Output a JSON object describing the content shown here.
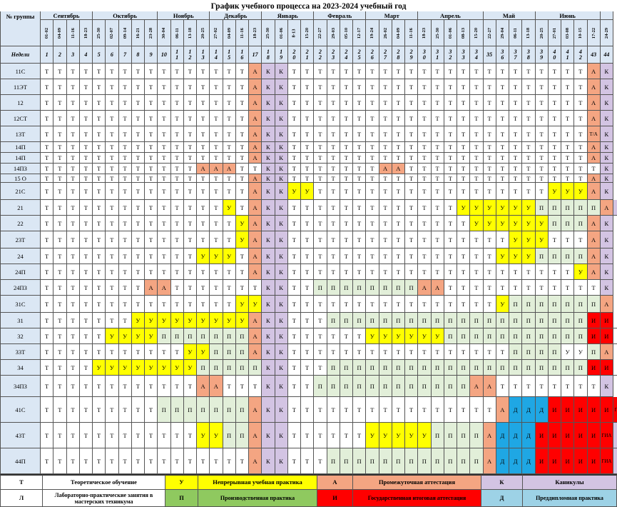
{
  "title": "График учебного процесса   на 2023-2024 учебный год",
  "header": {
    "group_label": "№ группы",
    "weeks_label": "Недели"
  },
  "months": [
    {
      "name": "Сентябрь",
      "span": 4
    },
    {
      "name": "Октябрь",
      "span": 5
    },
    {
      "name": "Ноябрь",
      "span": 4
    },
    {
      "name": "Декабрь",
      "span": 4
    },
    {
      "name": "Январь",
      "span": 4
    },
    {
      "name": "Февраль",
      "span": 4
    },
    {
      "name": "Март",
      "span": 4
    },
    {
      "name": "Апрель",
      "span": 5
    },
    {
      "name": "Май",
      "span": 4
    },
    {
      "name": "Июнь",
      "span": 5
    },
    {
      "name": "",
      "span": 1
    }
  ],
  "week_dates": [
    "01-02",
    "04-09",
    "11-16",
    "18-23",
    "25-30",
    "02-07",
    "09-14",
    "16-21",
    "23-28",
    "30-04",
    "06-11",
    "13-18",
    "20-25",
    "27-02",
    "04-09",
    "11-16",
    "18-23",
    "25-30",
    "01-06",
    "8-13",
    "15-20",
    "22-27",
    "29-03",
    "05-10",
    "12-17",
    "19-24",
    "26-02",
    "04-09",
    "11-16",
    "18-23",
    "25-30",
    "01-06",
    "08-13",
    "15-20",
    "22-27",
    "29-04",
    "06-11",
    "13-18",
    "20-25",
    "27-01",
    "03-08",
    "10-15",
    "17-22",
    "24-29"
  ],
  "week_numbers": [
    [
      "1"
    ],
    [
      "2"
    ],
    [
      "3"
    ],
    [
      "4"
    ],
    [
      "5"
    ],
    [
      "6"
    ],
    [
      "7"
    ],
    [
      "8"
    ],
    [
      "9"
    ],
    [
      "10"
    ],
    [
      "1",
      "1"
    ],
    [
      "1",
      "2"
    ],
    [
      "1",
      "3"
    ],
    [
      "1",
      "4"
    ],
    [
      "1",
      "5"
    ],
    [
      "1",
      "6"
    ],
    [
      "17"
    ],
    [
      "1",
      "8"
    ],
    [
      "1",
      "9"
    ],
    [
      "2",
      "0"
    ],
    [
      "2",
      "1"
    ],
    [
      "2",
      "2"
    ],
    [
      "2",
      "3"
    ],
    [
      "2",
      "4"
    ],
    [
      "2",
      "5"
    ],
    [
      "2",
      "6"
    ],
    [
      "2",
      "7"
    ],
    [
      "2",
      "8"
    ],
    [
      "2",
      "9"
    ],
    [
      "3",
      "0"
    ],
    [
      "3",
      "1"
    ],
    [
      "3",
      "2"
    ],
    [
      "3",
      "3"
    ],
    [
      "3",
      "4"
    ],
    [
      "35"
    ],
    [
      "3",
      "6"
    ],
    [
      "3",
      "7"
    ],
    [
      "3",
      "8"
    ],
    [
      "3",
      "9"
    ],
    [
      "4",
      "0"
    ],
    [
      "4",
      "1"
    ],
    [
      "4",
      "2"
    ],
    [
      "43"
    ],
    [
      "44"
    ]
  ],
  "groups": [
    {
      "name": "11С",
      "cells": "TTTTTTTTTTTTTTTTAKKTTTTTTTTTTTTTTTTTTTTTTTAK"
    },
    {
      "name": "11ЭТ",
      "cells": "TTTTTTTTTTTTTTTTAKKTTTTTTTTTTTTTTTTTTTTTTTAK"
    },
    {
      "name": "12",
      "cells": "TTTTTTTTTTTTTTTTAKKTTTTTTTTTTTTTTTTTTTTTTTAK"
    },
    {
      "name": "12СТ",
      "cells": "TTTTTTTTTTTTTTTTAKKTTTTTTTTTTTTTTTTTTTTTTTAK"
    },
    {
      "name": "13Т",
      "cells": "TTTTTTTTTTTTTTTTAKKTTTTTTTTTTTTTTTTTTTTTTTXK"
    },
    {
      "name": "14П",
      "cells": "TTTTTTTTTTTTTTTTAKKTTTTTTTTTTTTTTTTTTTTTTTAK"
    },
    {
      "name": "14П",
      "cells": "TTTTTTTTTTTTTTTTAKKTTTTTTTTTTTTTTTTTTTTTTTAK"
    },
    {
      "name": "14ПЗ",
      "cells": "TTTTTTTTTTTTAAATTKKTTTTTTTAATTTTTTTTTTTTTTTK"
    },
    {
      "name": "15 О",
      "cells": "TTTTTTTTTTTTTTTTAKKTTTTTTTTTTTTTTTTTTTTTTTAK"
    },
    {
      "name": "21С",
      "cells": "TTTTTTTTTTTTTTTTAKKUUTTTTTTTTTTTTTTTTTTUUUAK"
    },
    {
      "name": "21",
      "cells": "TTTTTTTTTTTTTTUTAKKTTTTTTTTTTTTTUUUUUUПППППAK"
    },
    {
      "name": "22",
      "cells": "TTTTTTTTTTTTTTTUAKKTTTTTTTTTTTTTTUUUUUUПППAK"
    },
    {
      "name": "23Т",
      "cells": "TTTTTTTTTTTTTTTUAKKTTTTTTTTTTTTTTTTTUUUTTTAK"
    },
    {
      "name": "24",
      "cells": "TTTTTTTTTTTTUUUTAKKTTTTTTTTTTTTTTTTUUUППППAK"
    },
    {
      "name": "24П",
      "cells": "TTTTTTTTTTTTTTTTAKKTTTTTTTTTTTTTTTTTTTTTTUAK"
    },
    {
      "name": "24ПЗ",
      "cells": "TTTTTTTTAATTTTTTTKKTTППППППППAATTTTTTTTTTTTK"
    },
    {
      "name": "31С",
      "cells": "TTTTTTTTTTTTTTTUUKKTTTTTTTTTTTTTTTTUПППППППA"
    },
    {
      "name": "31",
      "cells": "TTTTTTTUUUUUUUUUAKKTTTППППППППППППППППППППИИ-"
    },
    {
      "name": "32",
      "cells": "TTTTTUUUUПППППППAKKTTTTTTUUUUUUПППППППППППИИ_"
    },
    {
      "name": "33Т",
      "cells": "TTTTTTTTTTTUUПППAKKTTTTTTTTTTTTTTTTTППППУУПA"
    },
    {
      "name": "34",
      "cells": "TTTTUUUUUUUUПППППKKTTTППППППППППППППППППППИИ_"
    },
    {
      "name": "34ПЗ",
      "cells": "TTTTTTTTTTTTAATTTKKTTППППППППППППAATTTTTTTTK"
    },
    {
      "name": "41С",
      "cells": "TTTTTTTTTПППППППAKKTTTTTTTTTTTTTTTTAДДДИИИИИГK"
    },
    {
      "name": "43Т",
      "cells": "TTTTTTTTTTTTUUППAKKTTTTTTUUUUUППППAДДДИИИИИГK"
    },
    {
      "name": "44П",
      "cells": "TTTTTTTTTTTTTTTTAKKTTTППППППППППППAДДДИИИИИГK"
    }
  ],
  "special_text": {
    "T": "Т",
    "A": "А",
    "K": "К",
    "U": "У",
    "П": "П",
    "Д": "Д",
    "И": "И",
    "Г": "ГИА",
    "X": "Т/А",
    "-": "-",
    "_": "_"
  },
  "legend": {
    "row1": [
      {
        "code": "Т",
        "label": "Теоретическое обучение"
      },
      {
        "code": "У",
        "label": "Непрерывная учебная практика"
      },
      {
        "code": "А",
        "label": "Промежуточная аттестация"
      },
      {
        "code": "К",
        "label": "Каникулы"
      }
    ],
    "row2": [
      {
        "code": "Л",
        "label": "Лабораторно-практические занятия в мастерских техникума"
      },
      {
        "code": "П",
        "label": "Производственная практика"
      },
      {
        "code": "И",
        "label": "Государственная итоговая аттестация"
      },
      {
        "code": "Д",
        "label": "Преддипломная практика"
      }
    ]
  },
  "colors": {
    "T": "#ffffff",
    "A": "#f4a582",
    "K": "#d3c4e3",
    "U": "#ffff00",
    "П": "#e2efd9",
    "Д": "#1fa7e4",
    "И": "#ff0000",
    "Г": "#ff0000",
    "X": "#f4a582",
    "-": "#ffffff",
    "_": "#ffffff",
    "headerBlue": "#dbe7f4",
    "legendYellow": "#ffff00",
    "legendOrange": "#f4a582",
    "legendLavender": "#d3c4e3",
    "legendGreen": "#8fc95f",
    "legendRed": "#ff0000",
    "legendCyan": "#9dd2e6"
  }
}
